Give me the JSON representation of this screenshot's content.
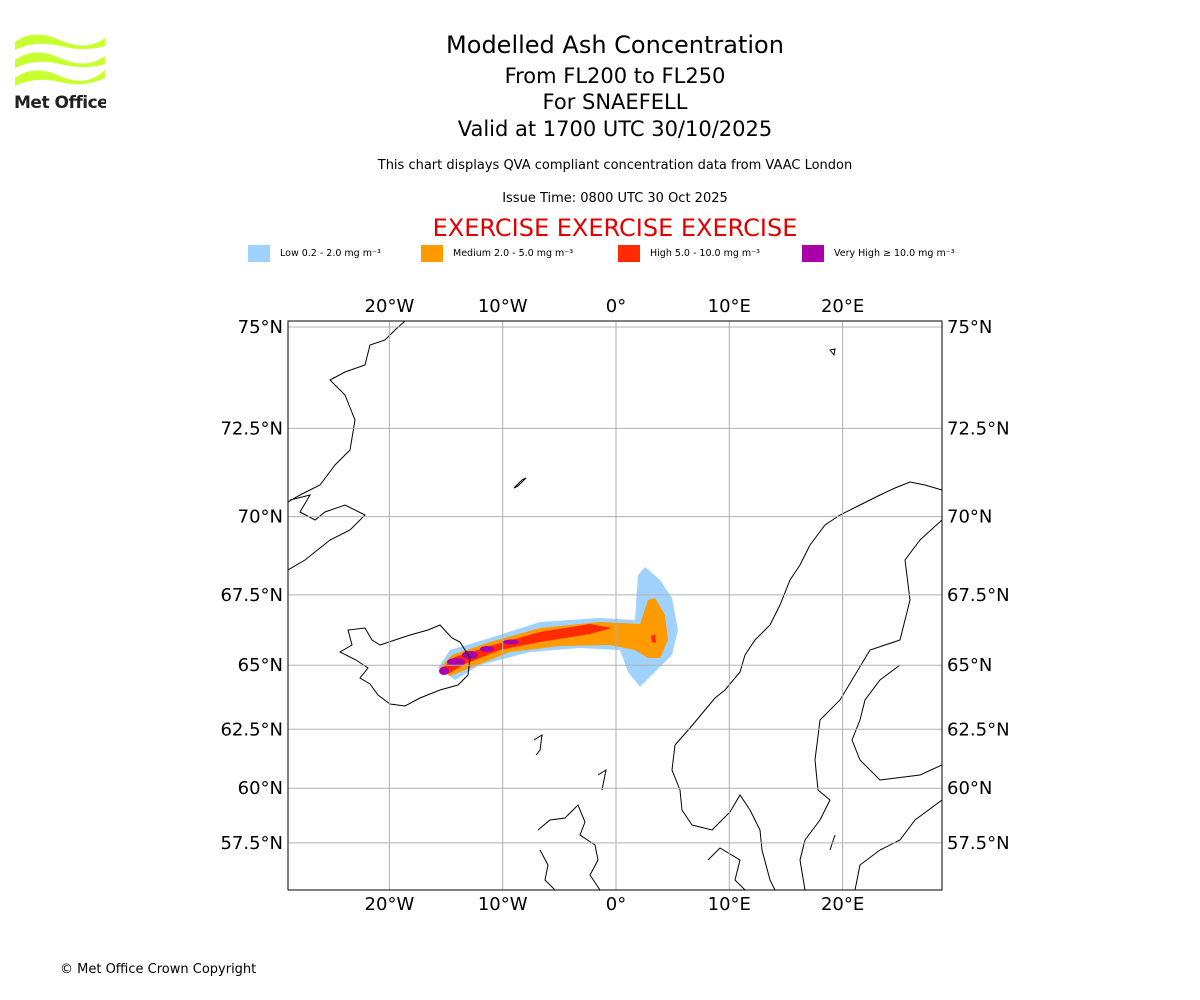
{
  "logo": {
    "text": "Met Office",
    "color": "#c8ff2e"
  },
  "title": "Modelled Ash Concentration",
  "levels": "From FL200 to FL250",
  "volcano": "For SNAEFELL",
  "valid": "Valid at 1700 UTC 30/10/2025",
  "subtitle": "This chart displays QVA compliant concentration data from VAAC London",
  "issue": "Issue Time: 0800 UTC 30 Oct 2025",
  "exercise": "EXERCISE EXERCISE EXERCISE",
  "legend": [
    {
      "label": "Low 0.2 - 2.0 mg m⁻³",
      "color": "#a0d2ff"
    },
    {
      "label": "Medium 2.0 - 5.0 mg m⁻³",
      "color": "#ff9a00"
    },
    {
      "label": "High 5.0 - 10.0 mg m⁻³",
      "color": "#ff2a00"
    },
    {
      "label": "Very High ≥ 10.0 mg m⁻³",
      "color": "#aa00aa"
    }
  ],
  "lon_ticks": [
    "20°W",
    "10°W",
    "0°",
    "10°E",
    "20°E"
  ],
  "lat_ticks": [
    "75°N",
    "72.5°N",
    "70°N",
    "67.5°N",
    "65°N",
    "62.5°N",
    "60°N",
    "57.5°N"
  ],
  "copyright": "© Met Office Crown Copyright"
}
